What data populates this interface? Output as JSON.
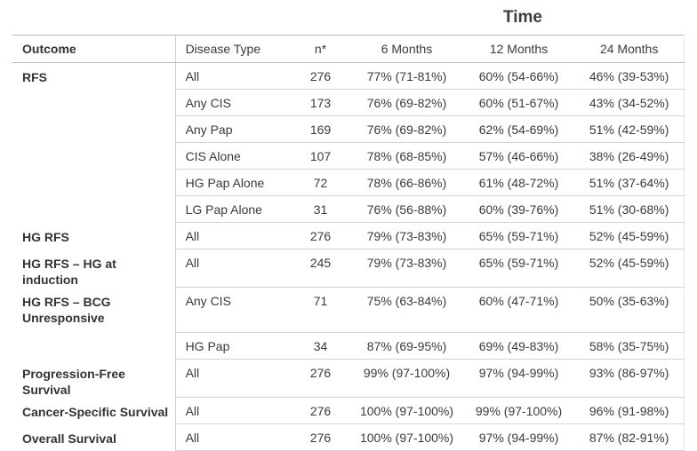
{
  "time_header": "Time",
  "columns": {
    "outcome": "Outcome",
    "disease_type": "Disease Type",
    "n": "n*",
    "m6": "6 Months",
    "m12": "12 Months",
    "m24": "24 Months"
  },
  "rows": [
    {
      "outcome": "RFS",
      "disease": "All",
      "n": "276",
      "m6": "77% (71-81%)",
      "m12": "60% (54-66%)",
      "m24": "46% (39-53%)"
    },
    {
      "outcome": "",
      "disease": "Any CIS",
      "n": "173",
      "m6": "76% (69-82%)",
      "m12": "60% (51-67%)",
      "m24": "43% (34-52%)"
    },
    {
      "outcome": "",
      "disease": "Any Pap",
      "n": "169",
      "m6": "76% (69-82%)",
      "m12": "62% (54-69%)",
      "m24": "51% (42-59%)"
    },
    {
      "outcome": "",
      "disease": "CIS Alone",
      "n": "107",
      "m6": "78% (68-85%)",
      "m12": "57% (46-66%)",
      "m24": "38% (26-49%)"
    },
    {
      "outcome": "",
      "disease": "HG Pap Alone",
      "n": "72",
      "m6": "78% (66-86%)",
      "m12": "61% (48-72%)",
      "m24": "51% (37-64%)"
    },
    {
      "outcome": "",
      "disease": "LG Pap Alone",
      "n": "31",
      "m6": "76% (56-88%)",
      "m12": "60% (39-76%)",
      "m24": "51% (30-68%)"
    },
    {
      "outcome": "HG RFS",
      "disease": "All",
      "n": "276",
      "m6": "79% (73-83%)",
      "m12": "65% (59-71%)",
      "m24": "52% (45-59%)"
    },
    {
      "outcome": "HG RFS – HG at induction",
      "disease": "All",
      "n": "245",
      "m6": "79% (73-83%)",
      "m12": "65% (59-71%)",
      "m24": "52% (45-59%)"
    },
    {
      "outcome": "HG RFS – BCG Unresponsive",
      "disease": "Any CIS",
      "n": "71",
      "m6": "75% (63-84%)",
      "m12": "60% (47-71%)",
      "m24": "50% (35-63%)"
    },
    {
      "outcome": "",
      "disease": "HG Pap",
      "n": "34",
      "m6": "87% (69-95%)",
      "m12": "69% (49-83%)",
      "m24": "58% (35-75%)"
    },
    {
      "outcome": "Progression-Free Survival",
      "disease": "All",
      "n": "276",
      "m6": "99% (97-100%)",
      "m12": "97% (94-99%)",
      "m24": "93% (86-97%)"
    },
    {
      "outcome": "Cancer-Specific Survival",
      "disease": "All",
      "n": "276",
      "m6": "100% (97-100%)",
      "m12": "99% (97-100%)",
      "m24": "96% (91-98%)"
    },
    {
      "outcome": "Overall Survival",
      "disease": "All",
      "n": "276",
      "m6": "100% (97-100%)",
      "m12": "97% (94-99%)",
      "m24": "87% (82-91%)"
    }
  ]
}
